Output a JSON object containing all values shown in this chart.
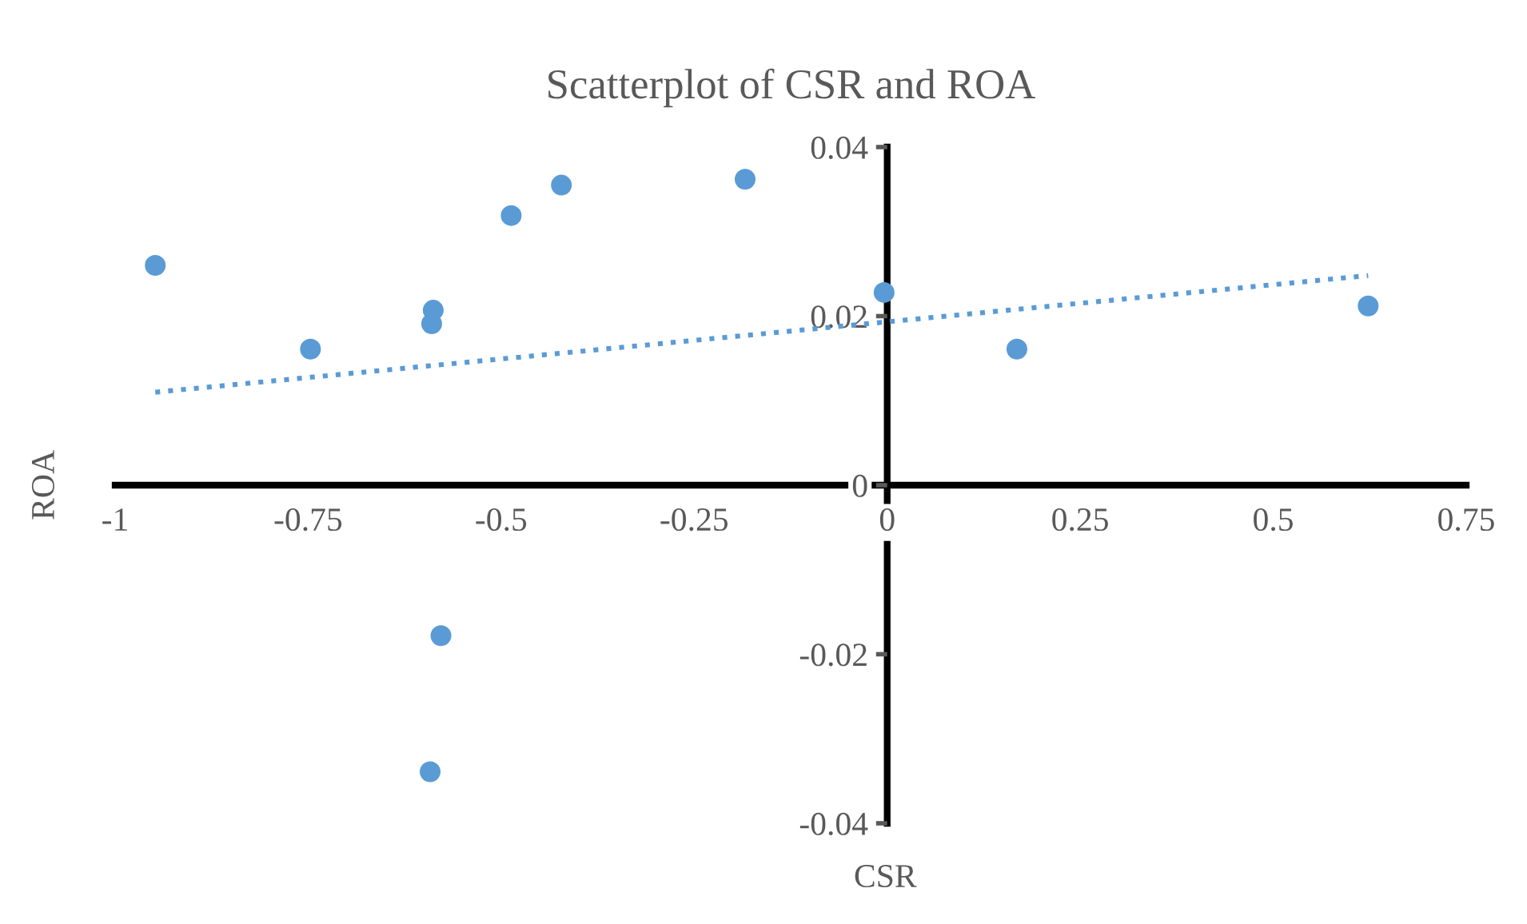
{
  "chart_data": {
    "type": "scatter",
    "title": "Scatterplot of CSR and ROA",
    "xlabel": "CSR",
    "ylabel": "ROA",
    "series": [
      {
        "color": "#5b9bd5",
        "marker": "circle",
        "x": [
          -0.948,
          -0.747,
          -0.588,
          -0.59,
          -0.487,
          -0.422,
          -0.184,
          -0.004,
          0.168,
          0.623,
          -0.578,
          -0.592
        ],
        "values": [
          0.026,
          0.0161,
          0.0207,
          0.0191,
          0.0319,
          0.0355,
          0.0362,
          0.0228,
          0.0161,
          0.0212,
          -0.0178,
          -0.0339
        ]
      },
      {
        "type": "line",
        "color": "#5b9bd5",
        "line_style": "dotted",
        "marker": "none",
        "x": [
          -0.948,
          0.623
        ],
        "values": [
          0.011,
          0.0248
        ]
      }
    ],
    "xlim": [
      -1,
      0.75
    ],
    "xticks": [
      -1,
      -0.75,
      -0.5,
      -0.25,
      0,
      0.25,
      0.5,
      0.75
    ],
    "ylim": [
      -0.04,
      0.04
    ],
    "yticks": [
      -0.04,
      -0.02,
      0,
      0.02,
      0.04
    ],
    "grid": false,
    "legend": false
  }
}
